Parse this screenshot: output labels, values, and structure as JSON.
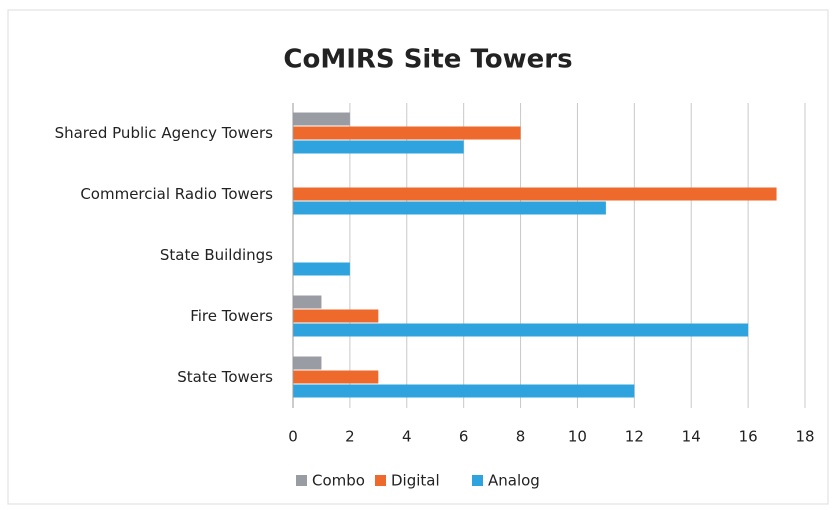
{
  "chart_data": {
    "type": "barh",
    "title": "CoMIRS Site Towers",
    "categories": [
      "Shared Public Agency Towers",
      "Commercial Radio Towers",
      "State Buildings",
      "Fire Towers",
      "State Towers"
    ],
    "series": [
      {
        "name": "Combo",
        "color": "#9a9ca3",
        "values": [
          2,
          0,
          0,
          1,
          1
        ]
      },
      {
        "name": "Digital",
        "color": "#ee6a2c",
        "values": [
          8,
          17,
          0,
          3,
          3
        ]
      },
      {
        "name": "Analog",
        "color": "#2ea3de",
        "values": [
          6,
          11,
          2,
          16,
          12
        ]
      }
    ],
    "xlim": [
      0,
      18
    ],
    "xticks": [
      0,
      2,
      4,
      6,
      8,
      10,
      12,
      14,
      16,
      18
    ],
    "grid": true,
    "legend": "bottom"
  }
}
